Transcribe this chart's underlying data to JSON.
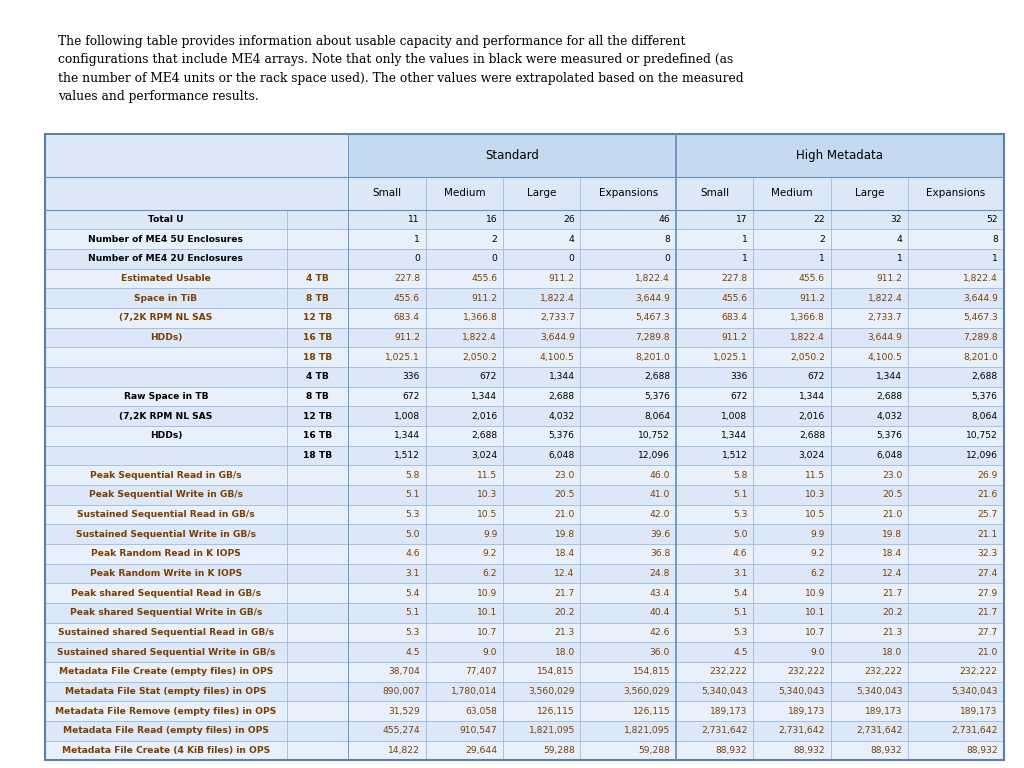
{
  "intro_text": "The following table provides information about usable capacity and performance for all the different\nconfigurations that include ME4 arrays. Note that only the values in black were measured or predefined (as\nthe number of ME4 units or the rack space used). The other values were extrapolated based on the measured\nvalues and performance results.",
  "rows": [
    {
      "label1": "Total U",
      "label2": "",
      "vals": [
        "11",
        "16",
        "26",
        "46",
        "17",
        "22",
        "32",
        "52"
      ],
      "color": "black"
    },
    {
      "label1": "Number of ME4 5U Enclosures",
      "label2": "",
      "vals": [
        "1",
        "2",
        "4",
        "8",
        "1",
        "2",
        "4",
        "8"
      ],
      "color": "black"
    },
    {
      "label1": "Number of ME4 2U Enclosures",
      "label2": "",
      "vals": [
        "0",
        "0",
        "0",
        "0",
        "1",
        "1",
        "1",
        "1"
      ],
      "color": "black"
    },
    {
      "label1": "Estimated Usable",
      "label2": "4 TB",
      "vals": [
        "227.8",
        "455.6",
        "911.2",
        "1,822.4",
        "227.8",
        "455.6",
        "911.2",
        "1,822.4"
      ],
      "color": "brown"
    },
    {
      "label1": "Space in TiB",
      "label2": "8 TB",
      "vals": [
        "455.6",
        "911.2",
        "1,822.4",
        "3,644.9",
        "455.6",
        "911.2",
        "1,822.4",
        "3,644.9"
      ],
      "color": "brown"
    },
    {
      "label1": "(7,2K RPM NL SAS",
      "label2": "12 TB",
      "vals": [
        "683.4",
        "1,366.8",
        "2,733.7",
        "5,467.3",
        "683.4",
        "1,366.8",
        "2,733.7",
        "5,467.3"
      ],
      "color": "brown"
    },
    {
      "label1": "HDDs)",
      "label2": "16 TB",
      "vals": [
        "911.2",
        "1,822.4",
        "3,644.9",
        "7,289.8",
        "911.2",
        "1,822.4",
        "3,644.9",
        "7,289.8"
      ],
      "color": "brown"
    },
    {
      "label1": "",
      "label2": "18 TB",
      "vals": [
        "1,025.1",
        "2,050.2",
        "4,100.5",
        "8,201.0",
        "1,025.1",
        "2,050.2",
        "4,100.5",
        "8,201.0"
      ],
      "color": "brown"
    },
    {
      "label1": "",
      "label2": "4 TB",
      "vals": [
        "336",
        "672",
        "1,344",
        "2,688",
        "336",
        "672",
        "1,344",
        "2,688"
      ],
      "color": "black"
    },
    {
      "label1": "Raw Space in TB",
      "label2": "8 TB",
      "vals": [
        "672",
        "1,344",
        "2,688",
        "5,376",
        "672",
        "1,344",
        "2,688",
        "5,376"
      ],
      "color": "black"
    },
    {
      "label1": "(7,2K RPM NL SAS",
      "label2": "12 TB",
      "vals": [
        "1,008",
        "2,016",
        "4,032",
        "8,064",
        "1,008",
        "2,016",
        "4,032",
        "8,064"
      ],
      "color": "black"
    },
    {
      "label1": "HDDs)",
      "label2": "16 TB",
      "vals": [
        "1,344",
        "2,688",
        "5,376",
        "10,752",
        "1,344",
        "2,688",
        "5,376",
        "10,752"
      ],
      "color": "black"
    },
    {
      "label1": "",
      "label2": "18 TB",
      "vals": [
        "1,512",
        "3,024",
        "6,048",
        "12,096",
        "1,512",
        "3,024",
        "6,048",
        "12,096"
      ],
      "color": "black"
    },
    {
      "label1": "Peak Sequential Read in GB/s",
      "label2": "",
      "vals": [
        "5.8",
        "11.5",
        "23.0",
        "46.0",
        "5.8",
        "11.5",
        "23.0",
        "26.9"
      ],
      "color": "brown"
    },
    {
      "label1": "Peak Sequential Write in GB/s",
      "label2": "",
      "vals": [
        "5.1",
        "10.3",
        "20.5",
        "41.0",
        "5.1",
        "10.3",
        "20.5",
        "21.6"
      ],
      "color": "brown"
    },
    {
      "label1": "Sustained Sequential Read in GB/s",
      "label2": "",
      "vals": [
        "5.3",
        "10.5",
        "21.0",
        "42.0",
        "5.3",
        "10.5",
        "21.0",
        "25.7"
      ],
      "color": "brown"
    },
    {
      "label1": "Sustained Sequential Write in GB/s",
      "label2": "",
      "vals": [
        "5.0",
        "9.9",
        "19.8",
        "39.6",
        "5.0",
        "9.9",
        "19.8",
        "21.1"
      ],
      "color": "brown"
    },
    {
      "label1": "Peak Random Read in K IOPS",
      "label2": "",
      "vals": [
        "4.6",
        "9.2",
        "18.4",
        "36.8",
        "4.6",
        "9.2",
        "18.4",
        "32.3"
      ],
      "color": "brown"
    },
    {
      "label1": "Peak Random Write in K IOPS",
      "label2": "",
      "vals": [
        "3.1",
        "6.2",
        "12.4",
        "24.8",
        "3.1",
        "6.2",
        "12.4",
        "27.4"
      ],
      "color": "brown"
    },
    {
      "label1": "Peak shared Sequential Read in GB/s",
      "label2": "",
      "vals": [
        "5.4",
        "10.9",
        "21.7",
        "43.4",
        "5.4",
        "10.9",
        "21.7",
        "27.9"
      ],
      "color": "brown"
    },
    {
      "label1": "Peak shared Sequential Write in GB/s",
      "label2": "",
      "vals": [
        "5.1",
        "10.1",
        "20.2",
        "40.4",
        "5.1",
        "10.1",
        "20.2",
        "21.7"
      ],
      "color": "brown"
    },
    {
      "label1": "Sustained shared Sequential Read in GB/s",
      "label2": "",
      "vals": [
        "5.3",
        "10.7",
        "21.3",
        "42.6",
        "5.3",
        "10.7",
        "21.3",
        "27.7"
      ],
      "color": "brown"
    },
    {
      "label1": "Sustained shared Sequential Write in GB/s",
      "label2": "",
      "vals": [
        "4.5",
        "9.0",
        "18.0",
        "36.0",
        "4.5",
        "9.0",
        "18.0",
        "21.0"
      ],
      "color": "brown"
    },
    {
      "label1": "Metadata File Create (empty files) in OPS",
      "label2": "",
      "vals": [
        "38,704",
        "77,407",
        "154,815",
        "154,815",
        "232,222",
        "232,222",
        "232,222",
        "232,222"
      ],
      "color": "brown"
    },
    {
      "label1": "Metadata File Stat (empty files) in OPS",
      "label2": "",
      "vals": [
        "890,007",
        "1,780,014",
        "3,560,029",
        "3,560,029",
        "5,340,043",
        "5,340,043",
        "5,340,043",
        "5,340,043"
      ],
      "color": "brown"
    },
    {
      "label1": "Metadata File Remove (empty files) in OPS",
      "label2": "",
      "vals": [
        "31,529",
        "63,058",
        "126,115",
        "126,115",
        "189,173",
        "189,173",
        "189,173",
        "189,173"
      ],
      "color": "brown"
    },
    {
      "label1": "Metadata File Read (empty files) in OPS",
      "label2": "",
      "vals": [
        "455,274",
        "910,547",
        "1,821,095",
        "1,821,095",
        "2,731,642",
        "2,731,642",
        "2,731,642",
        "2,731,642"
      ],
      "color": "brown"
    },
    {
      "label1": "Metadata File Create (4 KiB files) in OPS",
      "label2": "",
      "vals": [
        "14,822",
        "29,644",
        "59,288",
        "59,288",
        "88,932",
        "88,932",
        "88,932",
        "88,932"
      ],
      "color": "brown"
    }
  ],
  "table_bg": "#dce8f8",
  "header_bg": "#c5d9f0",
  "alt_row_bg": "#e8f1fb",
  "text_color_black": "#000000",
  "text_color_brown": "#7B3F00",
  "border_color": "#8BAFD4"
}
